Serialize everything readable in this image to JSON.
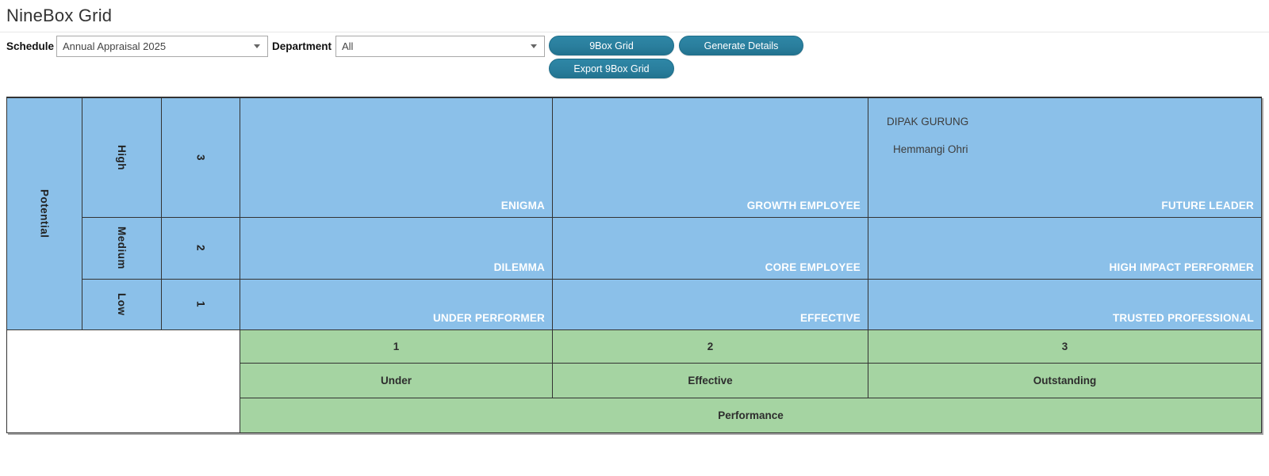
{
  "theme": {
    "blue": "#8BC0E9",
    "green": "#A5D4A2",
    "teal": "#2A7E9D",
    "tealBorder": "#1F6E8A"
  },
  "header": {
    "title": "NineBox Grid"
  },
  "toolbar": {
    "schedule": {
      "label": "Schedule",
      "value": "Annual Appraisal 2025"
    },
    "department": {
      "label": "Department",
      "value": "All"
    },
    "buttons": {
      "nine_box_grid": "9Box Grid",
      "generate_details": "Generate Details",
      "export_nine_box_grid": "Export 9Box Grid"
    }
  },
  "grid": {
    "potential": {
      "axis_label": "Potential",
      "levels": [
        "High",
        "Medium",
        "Low"
      ],
      "scores": [
        "3",
        "2",
        "1"
      ]
    },
    "performance": {
      "axis_label": "Performance",
      "scores": [
        "1",
        "2",
        "3"
      ],
      "levels": [
        "Under",
        "Effective",
        "Outstanding"
      ]
    },
    "cells": [
      {
        "label": "ENIGMA"
      },
      {
        "label": "GROWTH EMPLOYEE"
      },
      {
        "label": "FUTURE LEADER",
        "employees": [
          "DIPAK GURUNG",
          "Hemmangi Ohri"
        ]
      },
      {
        "label": "DILEMMA"
      },
      {
        "label": "CORE EMPLOYEE"
      },
      {
        "label": "HIGH IMPACT PERFORMER"
      },
      {
        "label": "UNDER PERFORMER"
      },
      {
        "label": "EFFECTIVE"
      },
      {
        "label": "TRUSTED PROFESSIONAL"
      }
    ]
  }
}
